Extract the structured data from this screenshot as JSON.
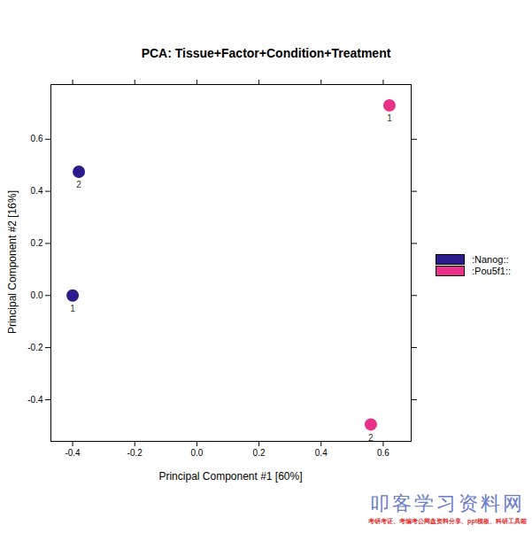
{
  "chart_data": {
    "type": "scatter",
    "title": "PCA: Tissue+Factor+Condition+Treatment",
    "x_label": "Principal Component #1 [60%]",
    "y_label": "Principal Component #2 [16%]",
    "series": [
      {
        "name": ":Nanog::",
        "color": "#2b1b8c",
        "x": [
          -0.4,
          -0.38
        ],
        "y": [
          0.0,
          0.475
        ],
        "labels": [
          "1",
          "2"
        ]
      },
      {
        "name": ":Pou5f1::",
        "color": "#e8328a",
        "x": [
          0.62,
          0.56
        ],
        "y": [
          0.73,
          -0.495
        ],
        "labels": [
          "1",
          "2"
        ]
      }
    ],
    "xlim": [
      -0.47,
      0.69
    ],
    "ylim": [
      -0.56,
      0.81
    ],
    "xticks": [
      -0.4,
      -0.2,
      {
        "value": 0,
        "label": "0.0"
      },
      0.2,
      0.4,
      0.6
    ],
    "yticks": [
      -0.4,
      -0.2,
      {
        "value": 0,
        "label": "0.0"
      },
      0.2,
      0.4,
      0.6
    ],
    "legend": "right",
    "marker": "circle",
    "annotations": [
      "叩客学习资料网",
      "考研考证、考编考公网盘资料分享、ppt模板、科研工具箱"
    ]
  }
}
